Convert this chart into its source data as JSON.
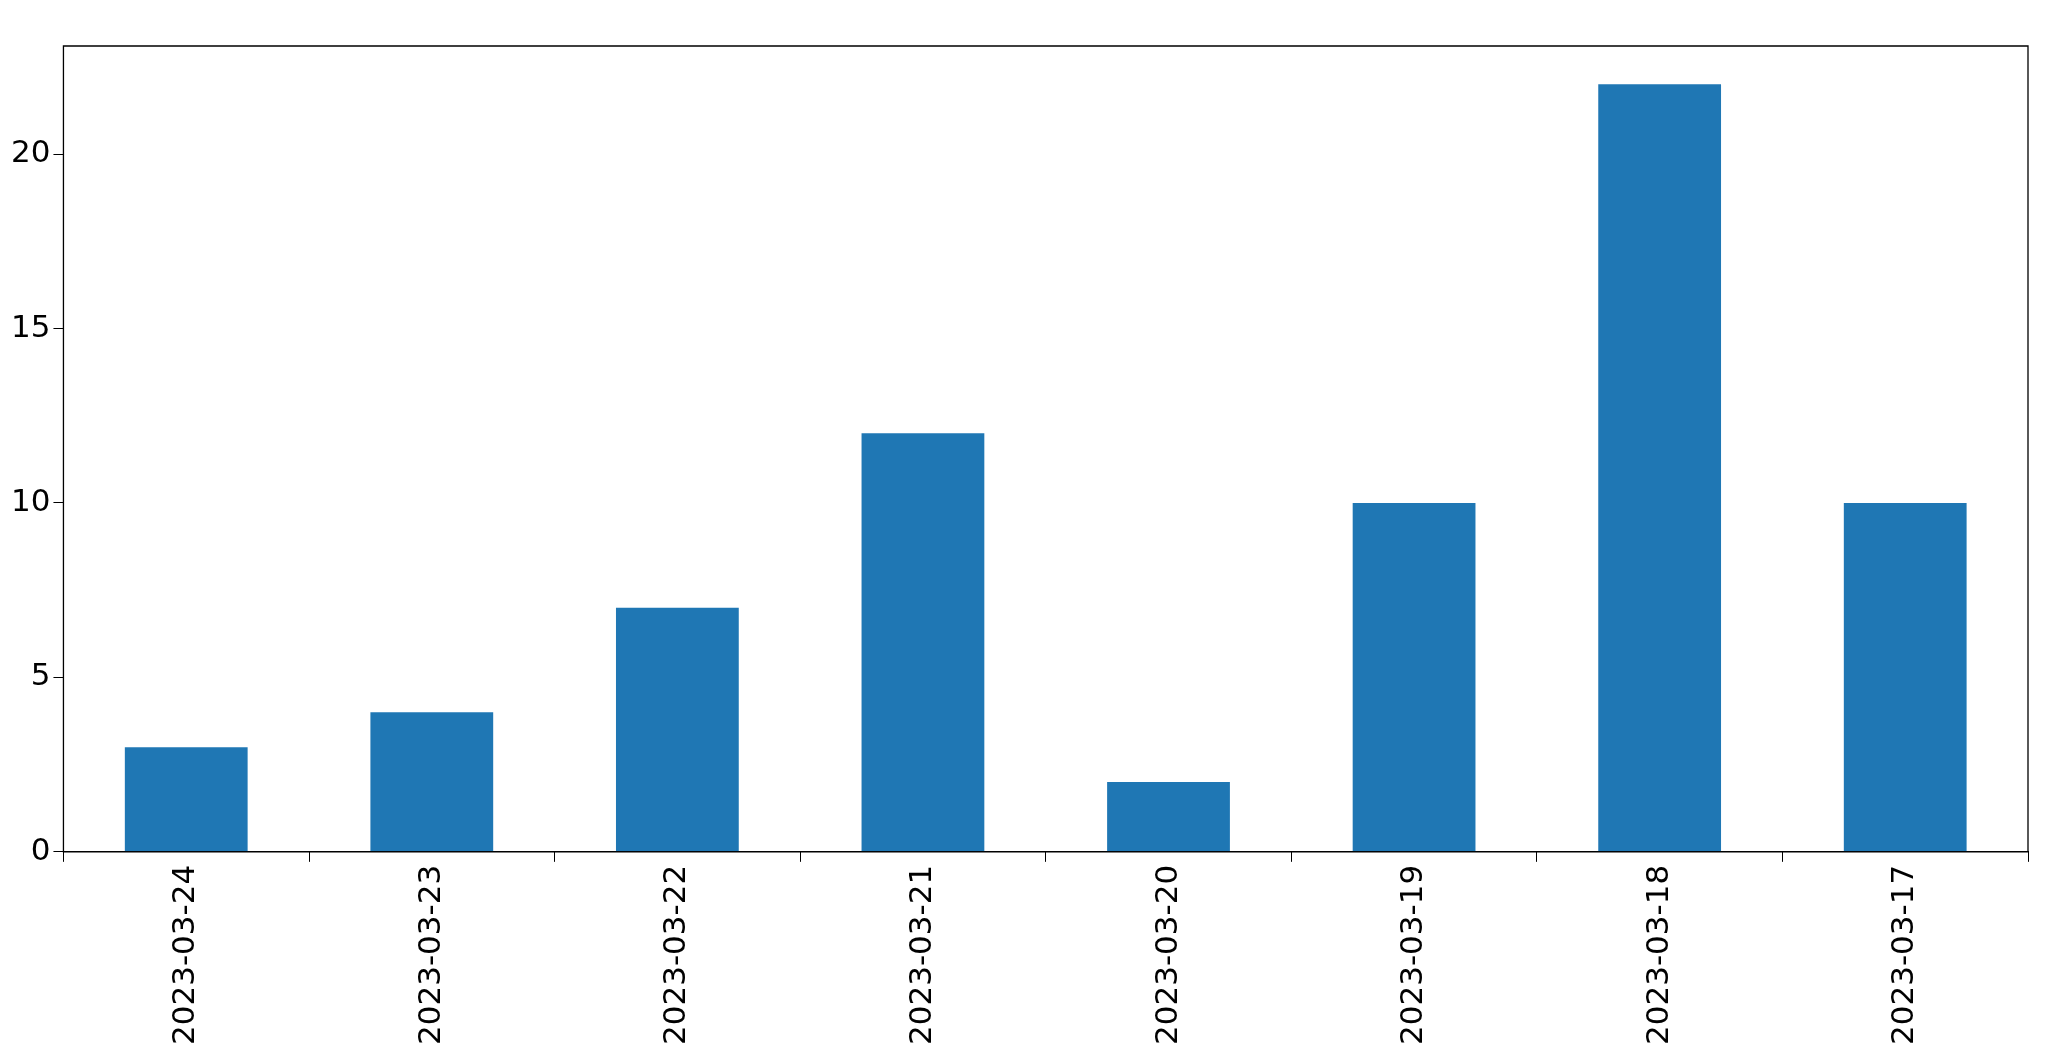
{
  "chart_data": {
    "type": "bar",
    "categories": [
      "2023-03-24",
      "2023-03-23",
      "2023-03-22",
      "2023-03-21",
      "2023-03-20",
      "2023-03-19",
      "2023-03-18",
      "2023-03-17"
    ],
    "values": [
      3,
      4,
      7,
      12,
      2,
      10,
      22,
      10
    ],
    "color": "#1f77b4",
    "ylim": [
      0,
      23.1
    ],
    "yticks": [
      0,
      5,
      10,
      15,
      20
    ],
    "grid": false,
    "legend": false
  }
}
